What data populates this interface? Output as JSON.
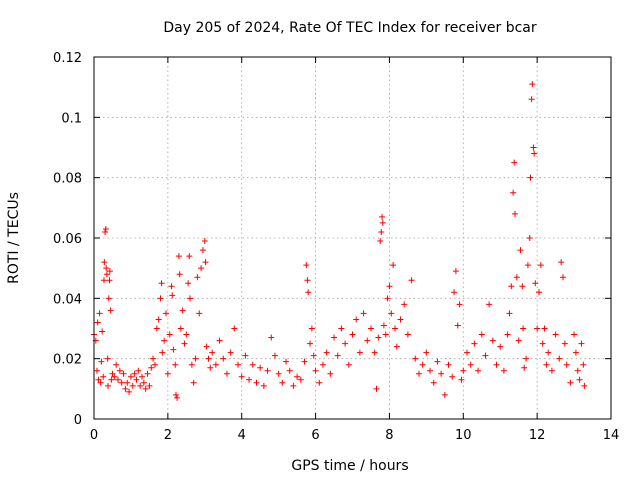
{
  "chart_data": {
    "type": "scatter",
    "title": "Day 205 of 2024, Rate Of TEC Index for receiver bcar",
    "xlabel": "GPS time / hours",
    "ylabel": "ROTI / TECUs",
    "xlim": [
      0,
      14
    ],
    "ylim": [
      0,
      0.12
    ],
    "xticks": [
      0,
      2,
      4,
      6,
      8,
      10,
      12,
      14
    ],
    "xtick_labels": [
      "0",
      "2",
      "4",
      "6",
      "8",
      "10",
      "12",
      "14"
    ],
    "yticks": [
      0,
      0.02,
      0.04,
      0.06,
      0.08,
      0.1,
      0.12
    ],
    "ytick_labels": [
      "0",
      "0.02",
      "0.04",
      "0.06",
      "0.08",
      "0.1",
      "0.12"
    ],
    "grid": true,
    "marker": "+",
    "series": [
      {
        "name": "ROTI",
        "color": "#ff0000",
        "points": [
          [
            0.0,
            0.028
          ],
          [
            0.05,
            0.026
          ],
          [
            0.08,
            0.016
          ],
          [
            0.1,
            0.032
          ],
          [
            0.12,
            0.013
          ],
          [
            0.15,
            0.035
          ],
          [
            0.18,
            0.012
          ],
          [
            0.2,
            0.019
          ],
          [
            0.22,
            0.029
          ],
          [
            0.25,
            0.014
          ],
          [
            0.27,
            0.046
          ],
          [
            0.28,
            0.052
          ],
          [
            0.3,
            0.062
          ],
          [
            0.32,
            0.063
          ],
          [
            0.33,
            0.05
          ],
          [
            0.35,
            0.048
          ],
          [
            0.37,
            0.02
          ],
          [
            0.38,
            0.011
          ],
          [
            0.4,
            0.04
          ],
          [
            0.42,
            0.046
          ],
          [
            0.43,
            0.049
          ],
          [
            0.45,
            0.036
          ],
          [
            0.47,
            0.013
          ],
          [
            0.5,
            0.015
          ],
          [
            0.55,
            0.014
          ],
          [
            0.6,
            0.018
          ],
          [
            0.65,
            0.013
          ],
          [
            0.7,
            0.016
          ],
          [
            0.75,
            0.012
          ],
          [
            0.8,
            0.015
          ],
          [
            0.85,
            0.01
          ],
          [
            0.9,
            0.012
          ],
          [
            0.95,
            0.009
          ],
          [
            1.0,
            0.014
          ],
          [
            1.05,
            0.011
          ],
          [
            1.1,
            0.015
          ],
          [
            1.15,
            0.013
          ],
          [
            1.2,
            0.016
          ],
          [
            1.25,
            0.011
          ],
          [
            1.3,
            0.014
          ],
          [
            1.35,
            0.012
          ],
          [
            1.4,
            0.01
          ],
          [
            1.45,
            0.015
          ],
          [
            1.5,
            0.011
          ],
          [
            1.55,
            0.017
          ],
          [
            1.6,
            0.02
          ],
          [
            1.65,
            0.018
          ],
          [
            1.7,
            0.03
          ],
          [
            1.75,
            0.033
          ],
          [
            1.8,
            0.04
          ],
          [
            1.83,
            0.045
          ],
          [
            1.85,
            0.022
          ],
          [
            1.9,
            0.026
          ],
          [
            1.95,
            0.035
          ],
          [
            2.0,
            0.015
          ],
          [
            2.05,
            0.028
          ],
          [
            2.1,
            0.044
          ],
          [
            2.12,
            0.041
          ],
          [
            2.15,
            0.023
          ],
          [
            2.2,
            0.018
          ],
          [
            2.22,
            0.008
          ],
          [
            2.25,
            0.007
          ],
          [
            2.3,
            0.054
          ],
          [
            2.32,
            0.048
          ],
          [
            2.35,
            0.03
          ],
          [
            2.4,
            0.036
          ],
          [
            2.45,
            0.025
          ],
          [
            2.5,
            0.028
          ],
          [
            2.55,
            0.045
          ],
          [
            2.58,
            0.054
          ],
          [
            2.6,
            0.04
          ],
          [
            2.65,
            0.018
          ],
          [
            2.7,
            0.012
          ],
          [
            2.75,
            0.02
          ],
          [
            2.8,
            0.047
          ],
          [
            2.85,
            0.035
          ],
          [
            2.9,
            0.05
          ],
          [
            2.95,
            0.056
          ],
          [
            3.0,
            0.059
          ],
          [
            3.02,
            0.052
          ],
          [
            3.05,
            0.024
          ],
          [
            3.1,
            0.02
          ],
          [
            3.15,
            0.017
          ],
          [
            3.2,
            0.022
          ],
          [
            3.3,
            0.018
          ],
          [
            3.4,
            0.026
          ],
          [
            3.5,
            0.02
          ],
          [
            3.6,
            0.015
          ],
          [
            3.7,
            0.022
          ],
          [
            3.8,
            0.03
          ],
          [
            3.9,
            0.018
          ],
          [
            4.0,
            0.014
          ],
          [
            4.1,
            0.021
          ],
          [
            4.2,
            0.013
          ],
          [
            4.3,
            0.018
          ],
          [
            4.4,
            0.012
          ],
          [
            4.5,
            0.017
          ],
          [
            4.6,
            0.011
          ],
          [
            4.7,
            0.016
          ],
          [
            4.8,
            0.027
          ],
          [
            4.9,
            0.021
          ],
          [
            5.0,
            0.015
          ],
          [
            5.1,
            0.012
          ],
          [
            5.2,
            0.019
          ],
          [
            5.3,
            0.016
          ],
          [
            5.4,
            0.011
          ],
          [
            5.5,
            0.014
          ],
          [
            5.6,
            0.013
          ],
          [
            5.7,
            0.019
          ],
          [
            5.75,
            0.051
          ],
          [
            5.78,
            0.046
          ],
          [
            5.8,
            0.042
          ],
          [
            5.85,
            0.025
          ],
          [
            5.9,
            0.03
          ],
          [
            5.95,
            0.021
          ],
          [
            6.0,
            0.016
          ],
          [
            6.1,
            0.012
          ],
          [
            6.2,
            0.018
          ],
          [
            6.3,
            0.022
          ],
          [
            6.4,
            0.015
          ],
          [
            6.5,
            0.027
          ],
          [
            6.6,
            0.021
          ],
          [
            6.7,
            0.03
          ],
          [
            6.8,
            0.025
          ],
          [
            6.9,
            0.018
          ],
          [
            7.0,
            0.028
          ],
          [
            7.1,
            0.033
          ],
          [
            7.2,
            0.022
          ],
          [
            7.3,
            0.035
          ],
          [
            7.4,
            0.026
          ],
          [
            7.5,
            0.03
          ],
          [
            7.6,
            0.022
          ],
          [
            7.65,
            0.01
          ],
          [
            7.7,
            0.027
          ],
          [
            7.75,
            0.059
          ],
          [
            7.78,
            0.062
          ],
          [
            7.8,
            0.067
          ],
          [
            7.82,
            0.065
          ],
          [
            7.85,
            0.031
          ],
          [
            7.9,
            0.028
          ],
          [
            7.95,
            0.04
          ],
          [
            8.0,
            0.044
          ],
          [
            8.05,
            0.035
          ],
          [
            8.1,
            0.051
          ],
          [
            8.15,
            0.03
          ],
          [
            8.2,
            0.024
          ],
          [
            8.3,
            0.033
          ],
          [
            8.4,
            0.038
          ],
          [
            8.5,
            0.028
          ],
          [
            8.6,
            0.046
          ],
          [
            8.7,
            0.02
          ],
          [
            8.8,
            0.015
          ],
          [
            8.9,
            0.018
          ],
          [
            9.0,
            0.022
          ],
          [
            9.1,
            0.016
          ],
          [
            9.2,
            0.012
          ],
          [
            9.3,
            0.019
          ],
          [
            9.4,
            0.015
          ],
          [
            9.5,
            0.008
          ],
          [
            9.6,
            0.018
          ],
          [
            9.7,
            0.014
          ],
          [
            9.75,
            0.042
          ],
          [
            9.8,
            0.049
          ],
          [
            9.85,
            0.031
          ],
          [
            9.9,
            0.038
          ],
          [
            9.95,
            0.013
          ],
          [
            10.0,
            0.016
          ],
          [
            10.1,
            0.022
          ],
          [
            10.2,
            0.018
          ],
          [
            10.3,
            0.025
          ],
          [
            10.4,
            0.016
          ],
          [
            10.5,
            0.028
          ],
          [
            10.6,
            0.021
          ],
          [
            10.7,
            0.038
          ],
          [
            10.8,
            0.026
          ],
          [
            10.9,
            0.018
          ],
          [
            11.0,
            0.024
          ],
          [
            11.1,
            0.016
          ],
          [
            11.2,
            0.028
          ],
          [
            11.25,
            0.035
          ],
          [
            11.3,
            0.044
          ],
          [
            11.35,
            0.075
          ],
          [
            11.38,
            0.085
          ],
          [
            11.4,
            0.068
          ],
          [
            11.45,
            0.047
          ],
          [
            11.5,
            0.026
          ],
          [
            11.55,
            0.056
          ],
          [
            11.6,
            0.044
          ],
          [
            11.62,
            0.03
          ],
          [
            11.65,
            0.017
          ],
          [
            11.7,
            0.02
          ],
          [
            11.75,
            0.051
          ],
          [
            11.8,
            0.06
          ],
          [
            11.82,
            0.08
          ],
          [
            11.85,
            0.106
          ],
          [
            11.87,
            0.111
          ],
          [
            11.9,
            0.09
          ],
          [
            11.92,
            0.088
          ],
          [
            11.95,
            0.045
          ],
          [
            12.0,
            0.03
          ],
          [
            12.05,
            0.042
          ],
          [
            12.1,
            0.051
          ],
          [
            12.15,
            0.025
          ],
          [
            12.2,
            0.03
          ],
          [
            12.25,
            0.018
          ],
          [
            12.3,
            0.022
          ],
          [
            12.4,
            0.016
          ],
          [
            12.5,
            0.028
          ],
          [
            12.6,
            0.02
          ],
          [
            12.65,
            0.052
          ],
          [
            12.7,
            0.047
          ],
          [
            12.75,
            0.025
          ],
          [
            12.8,
            0.018
          ],
          [
            12.9,
            0.012
          ],
          [
            13.0,
            0.028
          ],
          [
            13.05,
            0.022
          ],
          [
            13.1,
            0.016
          ],
          [
            13.15,
            0.013
          ],
          [
            13.2,
            0.025
          ],
          [
            13.25,
            0.018
          ],
          [
            13.28,
            0.011
          ]
        ]
      }
    ]
  }
}
